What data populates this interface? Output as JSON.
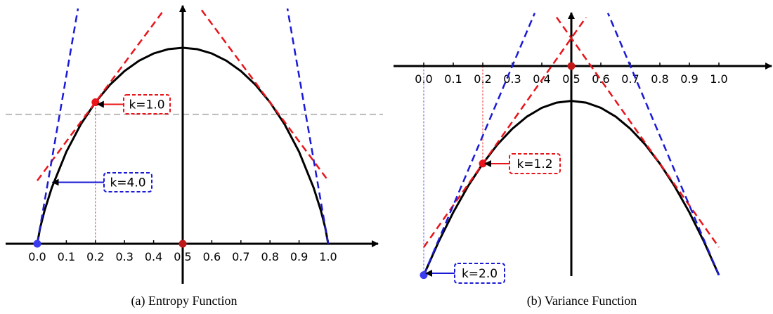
{
  "chart_data": [
    {
      "type": "line",
      "caption": "(a) Entropy Function",
      "x_tick_labels": [
        "0.0",
        "0.1",
        "0.2",
        "0.3",
        "0.4",
        "0.5",
        "0.6",
        "0.7",
        "0.8",
        "0.9",
        "1.0"
      ],
      "xlim": [
        0,
        1
      ],
      "grid": false,
      "curve": {
        "color": "#000000",
        "x": [
          0,
          0.01,
          0.025,
          0.05,
          0.1,
          0.15,
          0.2,
          0.25,
          0.3,
          0.35,
          0.4,
          0.45,
          0.5,
          0.55,
          0.6,
          0.65,
          0.7,
          0.75,
          0.8,
          0.85,
          0.9,
          0.95,
          0.975,
          0.99,
          1
        ],
        "y": [
          0,
          0.081,
          0.169,
          0.286,
          0.469,
          0.61,
          0.722,
          0.811,
          0.881,
          0.934,
          0.971,
          0.993,
          1,
          0.993,
          0.971,
          0.934,
          0.881,
          0.811,
          0.722,
          0.61,
          0.469,
          0.286,
          0.169,
          0.081,
          0
        ]
      },
      "tangents": [
        {
          "color": "#e8141a",
          "points": [
            [
              0,
              0.322
            ],
            [
              0.435,
              1.192
            ]
          ]
        },
        {
          "color": "#e8141a",
          "points": [
            [
              0.565,
              1.192
            ],
            [
              1.0,
              0.322
            ]
          ]
        },
        {
          "color": "#1a1ad6",
          "points": [
            [
              0,
              0
            ],
            [
              0.14,
              1.2
            ]
          ]
        },
        {
          "color": "#1a1ad6",
          "points": [
            [
              1,
              0
            ],
            [
              0.86,
              1.2
            ]
          ]
        }
      ],
      "reference_line": {
        "color": "#bbbbbb",
        "y": 0.66
      },
      "guides": [
        {
          "color": "#e8141a",
          "x": 0.2,
          "y_from": 0,
          "y_to": 0.722
        }
      ],
      "points": [
        {
          "color": "#e8141a",
          "x": 0.2,
          "y": 0.722
        },
        {
          "color": "#3b3bef",
          "x": 0,
          "y": 0
        },
        {
          "color": "#c01818",
          "x": 0.5,
          "y": 0
        }
      ],
      "annotations": [
        {
          "label": "k=1.0",
          "color": "#e8141a",
          "target": [
            0.2,
            0.722
          ]
        },
        {
          "label": "k=4.0",
          "color": "#1a1ad6",
          "target": [
            0.045,
            0.315
          ]
        }
      ]
    },
    {
      "type": "line",
      "caption": "(b) Variance Function",
      "x_tick_labels": [
        "0.0",
        "0.1",
        "0.2",
        "0.3",
        "0.4",
        "0.5",
        "0.6",
        "0.7",
        "0.8",
        "0.9",
        "1.0"
      ],
      "xlim": [
        0,
        1
      ],
      "grid": false,
      "curve": {
        "color": "#000000",
        "x": [
          0,
          0.05,
          0.1,
          0.15,
          0.2,
          0.25,
          0.3,
          0.35,
          0.4,
          0.45,
          0.5,
          0.55,
          0.6,
          0.65,
          0.7,
          0.75,
          0.8,
          0.85,
          0.9,
          0.95,
          1
        ],
        "y": [
          -0.3,
          -0.2525,
          -0.21,
          -0.1725,
          -0.14,
          -0.1125,
          -0.09,
          -0.0725,
          -0.06,
          -0.0525,
          -0.05,
          -0.0525,
          -0.06,
          -0.0725,
          -0.09,
          -0.1125,
          -0.14,
          -0.1725,
          -0.21,
          -0.2525,
          -0.3
        ]
      },
      "tangents": [
        {
          "color": "#e8141a",
          "points": [
            [
              0,
              -0.26
            ],
            [
              0.55,
              0.07
            ]
          ]
        },
        {
          "color": "#e8141a",
          "points": [
            [
              0.45,
              0.07
            ],
            [
              1.0,
              -0.26
            ]
          ]
        },
        {
          "color": "#1a1ad6",
          "points": [
            [
              0,
              -0.3
            ],
            [
              0.376,
              0.076
            ]
          ]
        },
        {
          "color": "#1a1ad6",
          "points": [
            [
              1,
              -0.3
            ],
            [
              0.624,
              0.076
            ]
          ]
        }
      ],
      "guides": [
        {
          "color": "#e8141a",
          "x": 0.2,
          "y_from": 0,
          "y_to": -0.14
        },
        {
          "color": "#3b3bef",
          "x": 0,
          "y_from": 0,
          "y_to": -0.3
        }
      ],
      "points": [
        {
          "color": "#e8141a",
          "x": 0.2,
          "y": -0.14
        },
        {
          "color": "#3b3bef",
          "x": 0,
          "y": -0.3
        },
        {
          "color": "#c01818",
          "x": 0.5,
          "y": 0
        }
      ],
      "annotations": [
        {
          "label": "k=1.2",
          "color": "#e8141a",
          "target": [
            0.2,
            -0.14
          ]
        },
        {
          "label": "k=2.0",
          "color": "#1a1ad6",
          "target": [
            0,
            -0.3
          ]
        }
      ]
    }
  ]
}
